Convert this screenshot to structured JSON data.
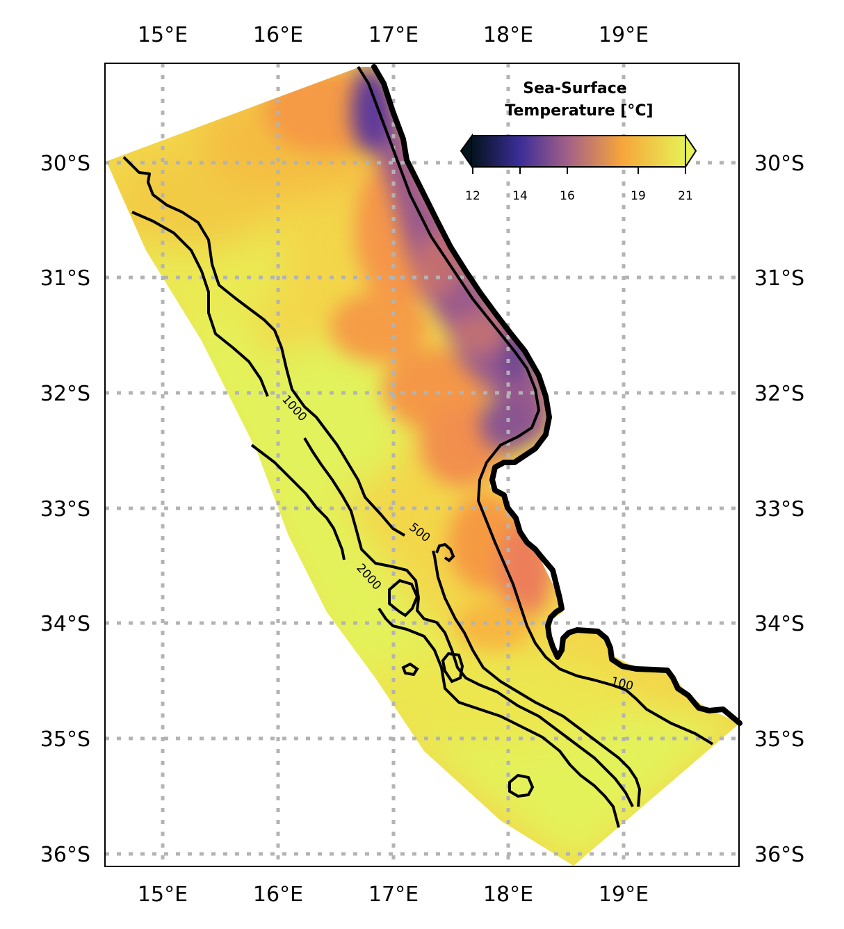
{
  "map": {
    "lon_labels": [
      "15°E",
      "16°E",
      "17°E",
      "18°E",
      "19°E"
    ],
    "lat_labels": [
      "30°S",
      "31°S",
      "32°S",
      "33°S",
      "34°S",
      "35°S",
      "36°S"
    ],
    "extent": {
      "lon": [
        14.5,
        20.0
      ],
      "lat": [
        -36.1,
        -29.1
      ]
    }
  },
  "colorbar": {
    "title_line1": "Sea-Surface",
    "title_line2": "Temperature [°C]",
    "ticks": [
      "12",
      "14",
      "16",
      "19",
      "21"
    ],
    "range": [
      12,
      21
    ],
    "colormap": [
      "#04131d",
      "#3a2d97",
      "#a46187",
      "#f7a53b",
      "#e6f357"
    ]
  },
  "contours": {
    "labels": [
      "1000",
      "500",
      "2000",
      "100"
    ]
  }
}
